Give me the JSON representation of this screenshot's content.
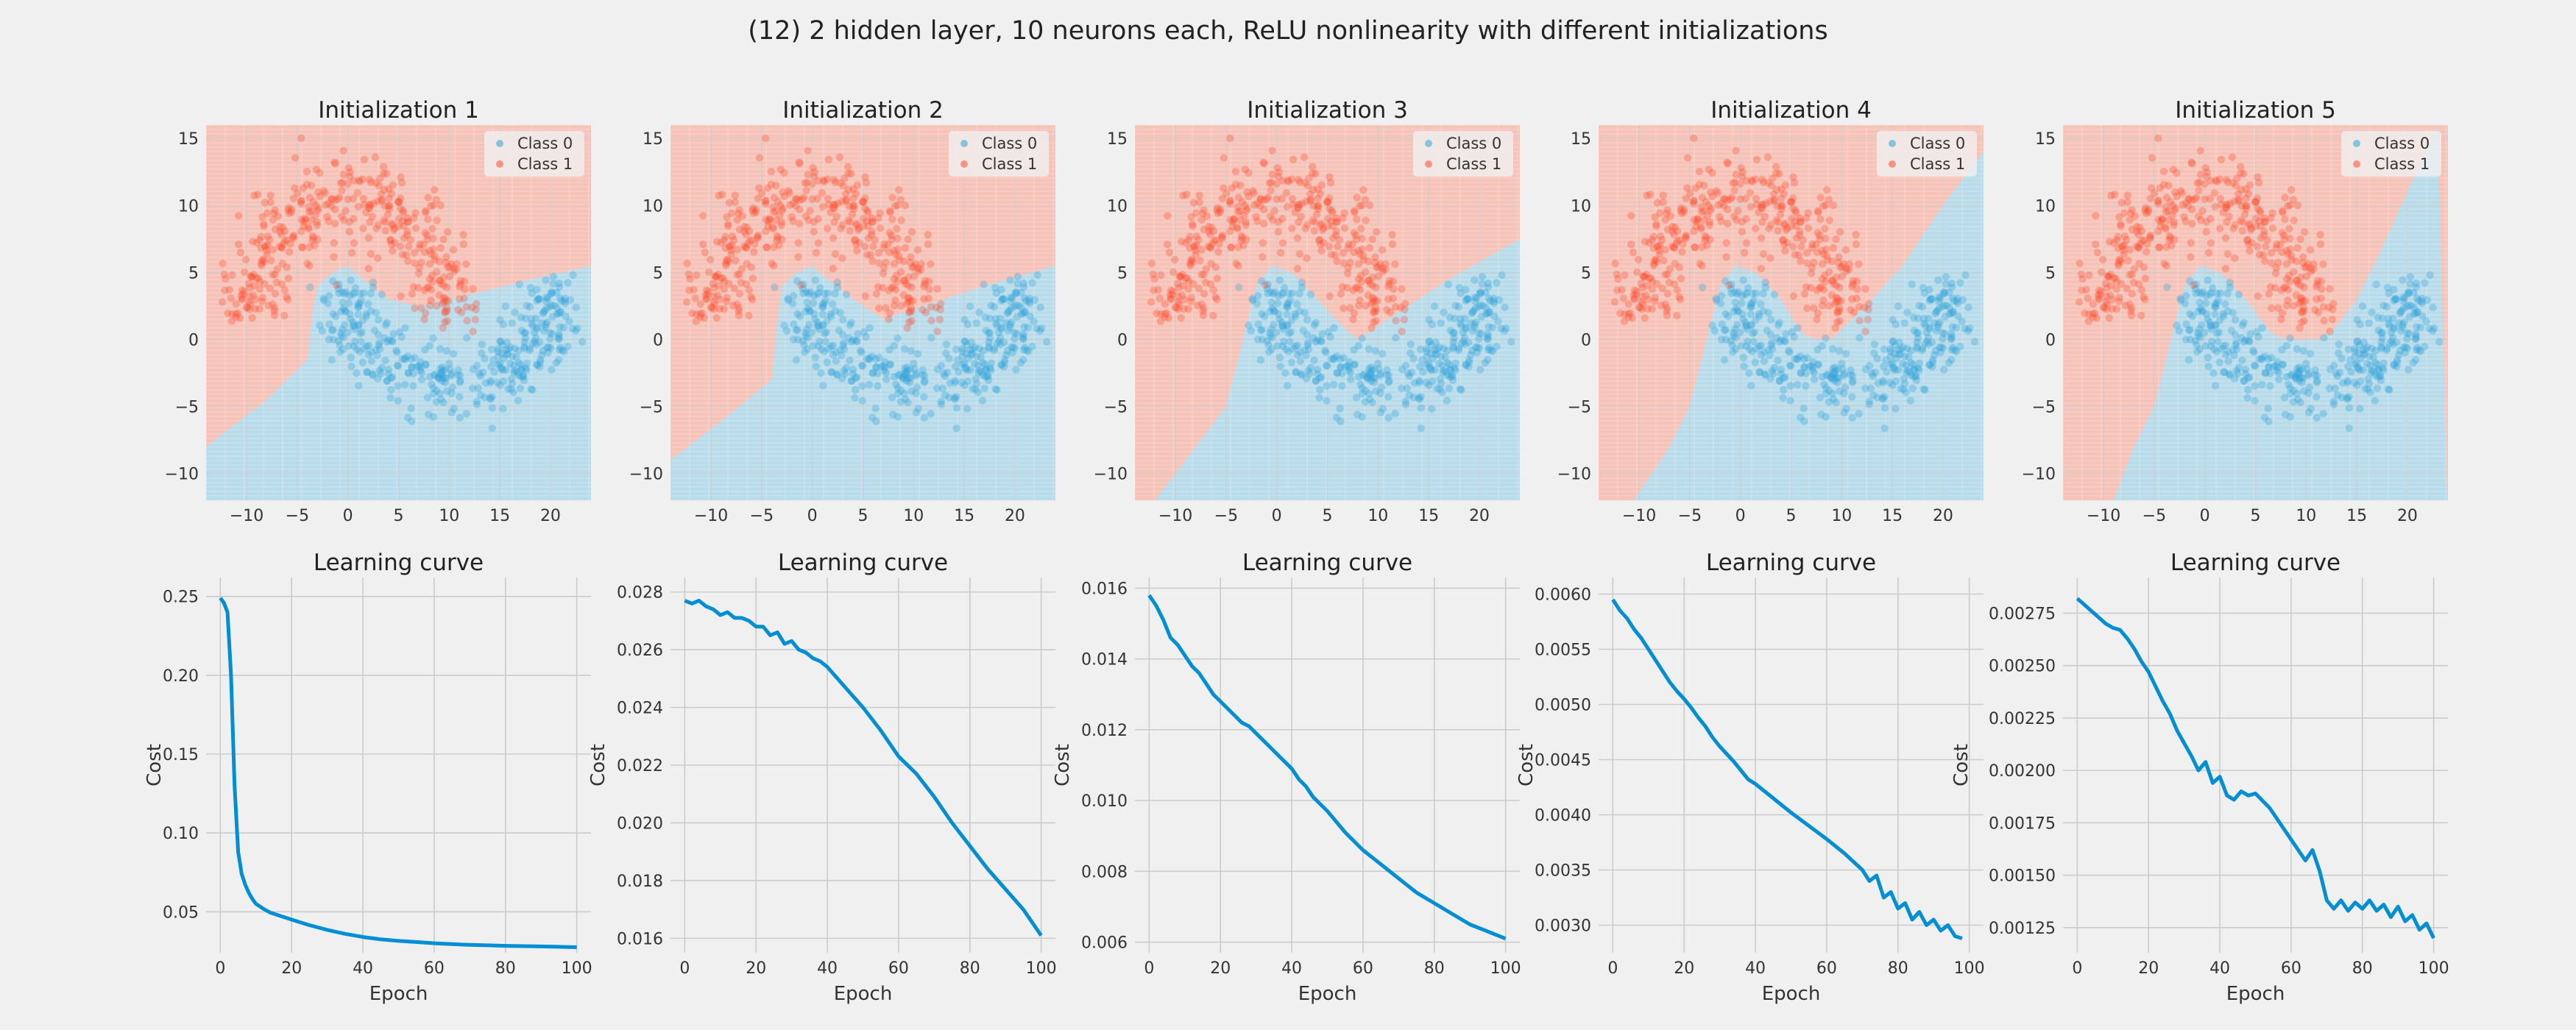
{
  "figure": {
    "suptitle": "(12) 2 hidden layer, 10 neurons each, ReLU nonlinearity with different initializations"
  },
  "colors": {
    "background": "#f0f0f0",
    "class0": "#30a2da",
    "class1": "#fc4f30",
    "region0": "#b9dcea",
    "region1": "#f6c3b8",
    "curve": "#008fd5"
  },
  "chart_data": [
    {
      "type": "scatter",
      "title": "Initialization 1",
      "xlim": [
        -14,
        24
      ],
      "ylim": [
        -12,
        16
      ],
      "xticks": [
        -10,
        -5,
        0,
        5,
        10,
        15,
        20
      ],
      "xtick_labels": [
        "−10",
        "−5",
        "0",
        "5",
        "10",
        "15",
        "20"
      ],
      "yticks": [
        -10,
        -5,
        0,
        5,
        10,
        15
      ],
      "ytick_labels": [
        "−10",
        "−5",
        "0",
        "5",
        "10",
        "15"
      ],
      "legend": [
        "Class 0",
        "Class 1"
      ],
      "legend_position": "top-right",
      "decision_boundary": [
        [
          -14,
          -8
        ],
        [
          -8,
          -4.5
        ],
        [
          -4,
          -1.5
        ],
        [
          -3.5,
          2
        ],
        [
          -3,
          4
        ],
        [
          -1.5,
          5
        ],
        [
          0,
          5.5
        ],
        [
          1.5,
          4.5
        ],
        [
          4,
          3
        ],
        [
          7,
          2.5
        ],
        [
          10,
          3
        ],
        [
          13,
          3.5
        ],
        [
          17,
          4.3
        ],
        [
          24,
          5.5
        ]
      ],
      "series": [
        {
          "name": "Class 0"
        },
        {
          "name": "Class 1"
        }
      ]
    },
    {
      "type": "scatter",
      "title": "Initialization 2",
      "xlim": [
        -14,
        24
      ],
      "ylim": [
        -12,
        16
      ],
      "xticks": [
        -10,
        -5,
        0,
        5,
        10,
        15,
        20
      ],
      "xtick_labels": [
        "−10",
        "−5",
        "0",
        "5",
        "10",
        "15",
        "20"
      ],
      "yticks": [
        -10,
        -5,
        0,
        5,
        10,
        15
      ],
      "ytick_labels": [
        "−10",
        "−5",
        "0",
        "5",
        "10",
        "15"
      ],
      "legend": [
        "Class 0",
        "Class 1"
      ],
      "legend_position": "top-right",
      "decision_boundary": [
        [
          -14,
          -9
        ],
        [
          -8,
          -5.5
        ],
        [
          -4,
          -3
        ],
        [
          -3.5,
          1
        ],
        [
          -3,
          4
        ],
        [
          -1.5,
          5
        ],
        [
          0,
          5.5
        ],
        [
          1.5,
          4.5
        ],
        [
          4,
          3
        ],
        [
          7,
          1.5
        ],
        [
          10,
          2.3
        ],
        [
          13,
          3
        ],
        [
          17,
          4
        ],
        [
          24,
          5.5
        ]
      ],
      "series": [
        {
          "name": "Class 0"
        },
        {
          "name": "Class 1"
        }
      ]
    },
    {
      "type": "scatter",
      "title": "Initialization 3",
      "xlim": [
        -14,
        24
      ],
      "ylim": [
        -12,
        16
      ],
      "xticks": [
        -10,
        -5,
        0,
        5,
        10,
        15,
        20
      ],
      "xtick_labels": [
        "−10",
        "−5",
        "0",
        "5",
        "10",
        "15",
        "20"
      ],
      "yticks": [
        -10,
        -5,
        0,
        5,
        10,
        15
      ],
      "ytick_labels": [
        "−10",
        "−5",
        "0",
        "5",
        "10",
        "15"
      ],
      "legend": [
        "Class 0",
        "Class 1"
      ],
      "legend_position": "top-right",
      "decision_boundary": [
        [
          -12,
          -12
        ],
        [
          -8,
          -8
        ],
        [
          -5,
          -5
        ],
        [
          -4,
          -2
        ],
        [
          -3,
          1
        ],
        [
          -2,
          4
        ],
        [
          -0.5,
          5.5
        ],
        [
          1.5,
          5
        ],
        [
          4,
          3
        ],
        [
          6.5,
          1
        ],
        [
          8,
          0
        ],
        [
          10,
          1
        ],
        [
          13,
          2.5
        ],
        [
          17,
          4.5
        ],
        [
          24,
          7.5
        ]
      ],
      "series": [
        {
          "name": "Class 0"
        },
        {
          "name": "Class 1"
        }
      ]
    },
    {
      "type": "scatter",
      "title": "Initialization 4",
      "xlim": [
        -14,
        24
      ],
      "ylim": [
        -12,
        16
      ],
      "xticks": [
        -10,
        -5,
        0,
        5,
        10,
        15,
        20
      ],
      "xtick_labels": [
        "−10",
        "−5",
        "0",
        "5",
        "10",
        "15",
        "20"
      ],
      "yticks": [
        -10,
        -5,
        0,
        5,
        10,
        15
      ],
      "ytick_labels": [
        "−10",
        "−5",
        "0",
        "5",
        "10",
        "15"
      ],
      "legend": [
        "Class 0",
        "Class 1"
      ],
      "legend_position": "top-right",
      "decision_boundary": [
        [
          -10.5,
          -12
        ],
        [
          -7,
          -8
        ],
        [
          -5,
          -5
        ],
        [
          -4,
          -2
        ],
        [
          -3,
          1
        ],
        [
          -2,
          4
        ],
        [
          -0.5,
          5.5
        ],
        [
          1.5,
          5
        ],
        [
          4,
          3
        ],
        [
          6,
          0.5
        ],
        [
          7.5,
          0
        ],
        [
          9,
          0
        ],
        [
          11,
          1.5
        ],
        [
          13,
          3
        ],
        [
          16,
          5.5
        ],
        [
          20,
          10
        ],
        [
          24,
          14
        ]
      ],
      "series": [
        {
          "name": "Class 0"
        },
        {
          "name": "Class 1"
        }
      ]
    },
    {
      "type": "scatter",
      "title": "Initialization 5",
      "xlim": [
        -14,
        24
      ],
      "ylim": [
        -12,
        16
      ],
      "xticks": [
        -10,
        -5,
        0,
        5,
        10,
        15,
        20
      ],
      "xtick_labels": [
        "−10",
        "−5",
        "0",
        "5",
        "10",
        "15",
        "20"
      ],
      "yticks": [
        -10,
        -5,
        0,
        5,
        10,
        15
      ],
      "ytick_labels": [
        "−10",
        "−5",
        "0",
        "5",
        "10",
        "15"
      ],
      "legend": [
        "Class 0",
        "Class 1"
      ],
      "legend_position": "top-right",
      "decision_boundary": [
        [
          -9,
          -12
        ],
        [
          -7,
          -8
        ],
        [
          -5,
          -5
        ],
        [
          -4,
          -2
        ],
        [
          -3,
          1
        ],
        [
          -2,
          4
        ],
        [
          -0.5,
          5.5
        ],
        [
          1.5,
          5
        ],
        [
          4,
          3
        ],
        [
          6.5,
          0.5
        ],
        [
          8,
          0
        ],
        [
          11.5,
          0
        ],
        [
          13,
          1
        ],
        [
          15,
          3
        ],
        [
          17,
          6
        ],
        [
          20,
          11
        ],
        [
          23,
          16
        ]
      ],
      "series": [
        {
          "name": "Class 0"
        },
        {
          "name": "Class 1"
        }
      ]
    },
    {
      "type": "line",
      "title": "Learning curve",
      "xlabel": "Epoch",
      "ylabel": "Cost",
      "xlim": [
        -4,
        104
      ],
      "ylim": [
        0.024,
        0.262
      ],
      "xticks": [
        0,
        20,
        40,
        60,
        80,
        100
      ],
      "xtick_labels": [
        "0",
        "20",
        "40",
        "60",
        "80",
        "100"
      ],
      "yticks": [
        0.05,
        0.1,
        0.15,
        0.2,
        0.25
      ],
      "ytick_labels": [
        "0.05",
        "0.10",
        "0.15",
        "0.20",
        "0.25"
      ],
      "x": [
        0,
        1,
        2,
        3,
        4,
        5,
        6,
        7,
        8,
        9,
        10,
        12,
        14,
        16,
        18,
        20,
        25,
        30,
        35,
        40,
        45,
        50,
        55,
        60,
        65,
        70,
        75,
        80,
        85,
        90,
        95,
        100
      ],
      "y": [
        0.249,
        0.246,
        0.24,
        0.2,
        0.13,
        0.088,
        0.074,
        0.067,
        0.062,
        0.058,
        0.055,
        0.052,
        0.0495,
        0.048,
        0.0465,
        0.045,
        0.0415,
        0.0385,
        0.036,
        0.034,
        0.0325,
        0.0315,
        0.0308,
        0.03,
        0.0295,
        0.029,
        0.0287,
        0.0284,
        0.0282,
        0.028,
        0.0278,
        0.0275
      ]
    },
    {
      "type": "line",
      "title": "Learning curve",
      "xlabel": "Epoch",
      "ylabel": "Cost",
      "xlim": [
        -4,
        104
      ],
      "ylim": [
        0.0155,
        0.0285
      ],
      "xticks": [
        0,
        20,
        40,
        60,
        80,
        100
      ],
      "xtick_labels": [
        "0",
        "20",
        "40",
        "60",
        "80",
        "100"
      ],
      "yticks": [
        0.016,
        0.018,
        0.02,
        0.022,
        0.024,
        0.026,
        0.028
      ],
      "ytick_labels": [
        "0.016",
        "0.018",
        "0.020",
        "0.022",
        "0.024",
        "0.026",
        "0.028"
      ],
      "x": [
        0,
        2,
        4,
        6,
        8,
        10,
        12,
        14,
        16,
        18,
        20,
        22,
        24,
        26,
        28,
        30,
        32,
        34,
        36,
        38,
        40,
        45,
        50,
        55,
        60,
        65,
        70,
        75,
        80,
        85,
        90,
        95,
        100
      ],
      "y": [
        0.0277,
        0.0276,
        0.0277,
        0.0275,
        0.0274,
        0.0272,
        0.0273,
        0.0271,
        0.0271,
        0.027,
        0.0268,
        0.0268,
        0.0265,
        0.0266,
        0.0262,
        0.0263,
        0.026,
        0.0259,
        0.0257,
        0.0256,
        0.0254,
        0.0247,
        0.024,
        0.0232,
        0.0223,
        0.0217,
        0.0209,
        0.02,
        0.0192,
        0.0184,
        0.0177,
        0.017,
        0.0161
      ]
    },
    {
      "type": "line",
      "title": "Learning curve",
      "xlabel": "Epoch",
      "ylabel": "Cost",
      "xlim": [
        -4,
        104
      ],
      "ylim": [
        0.0057,
        0.0163
      ],
      "xticks": [
        0,
        20,
        40,
        60,
        80,
        100
      ],
      "xtick_labels": [
        "0",
        "20",
        "40",
        "60",
        "80",
        "100"
      ],
      "yticks": [
        0.006,
        0.008,
        0.01,
        0.012,
        0.014,
        0.016
      ],
      "ytick_labels": [
        "0.006",
        "0.008",
        "0.010",
        "0.012",
        "0.014",
        "0.016"
      ],
      "x": [
        0,
        2,
        4,
        6,
        8,
        10,
        12,
        14,
        16,
        18,
        20,
        22,
        24,
        26,
        28,
        30,
        32,
        34,
        36,
        38,
        40,
        42,
        44,
        46,
        48,
        50,
        55,
        60,
        65,
        70,
        75,
        80,
        85,
        90,
        95,
        100
      ],
      "y": [
        0.0158,
        0.0155,
        0.0151,
        0.0146,
        0.0144,
        0.0141,
        0.0138,
        0.0136,
        0.0133,
        0.013,
        0.0128,
        0.0126,
        0.0124,
        0.0122,
        0.0121,
        0.0119,
        0.0117,
        0.0115,
        0.0113,
        0.0111,
        0.0109,
        0.0106,
        0.0104,
        0.0101,
        0.0099,
        0.0097,
        0.0091,
        0.0086,
        0.0082,
        0.0078,
        0.0074,
        0.0071,
        0.0068,
        0.0065,
        0.0063,
        0.0061
      ]
    },
    {
      "type": "line",
      "title": "Learning curve",
      "xlabel": "Epoch",
      "ylabel": "Cost",
      "xlim": [
        -4,
        104
      ],
      "ylim": [
        0.00275,
        0.00615
      ],
      "xticks": [
        0,
        20,
        40,
        60,
        80,
        100
      ],
      "xtick_labels": [
        "0",
        "20",
        "40",
        "60",
        "80",
        "100"
      ],
      "yticks": [
        0.003,
        0.0035,
        0.004,
        0.0045,
        0.005,
        0.0055,
        0.006
      ],
      "ytick_labels": [
        "0.0030",
        "0.0035",
        "0.0040",
        "0.0045",
        "0.0050",
        "0.0055",
        "0.0060"
      ],
      "x": [
        0,
        2,
        4,
        6,
        8,
        10,
        12,
        14,
        16,
        18,
        20,
        22,
        24,
        26,
        28,
        30,
        32,
        34,
        36,
        38,
        40,
        45,
        50,
        55,
        60,
        65,
        70,
        72,
        74,
        76,
        78,
        80,
        82,
        84,
        86,
        88,
        90,
        92,
        94,
        96,
        98
      ],
      "y": [
        0.00595,
        0.00585,
        0.00578,
        0.00568,
        0.0056,
        0.0055,
        0.0054,
        0.0053,
        0.0052,
        0.00512,
        0.00505,
        0.00497,
        0.00488,
        0.0048,
        0.0047,
        0.00462,
        0.00455,
        0.00448,
        0.0044,
        0.00432,
        0.00428,
        0.00415,
        0.00402,
        0.0039,
        0.00378,
        0.00365,
        0.0035,
        0.0034,
        0.00345,
        0.00325,
        0.0033,
        0.00315,
        0.0032,
        0.00305,
        0.00312,
        0.003,
        0.00305,
        0.00295,
        0.003,
        0.0029,
        0.00288
      ]
    },
    {
      "type": "line",
      "title": "Learning curve",
      "xlabel": "Epoch",
      "ylabel": "Cost",
      "xlim": [
        -4,
        104
      ],
      "ylim": [
        0.00113,
        0.00292
      ],
      "xticks": [
        0,
        20,
        40,
        60,
        80,
        100
      ],
      "xtick_labels": [
        "0",
        "20",
        "40",
        "60",
        "80",
        "100"
      ],
      "yticks": [
        0.00125,
        0.0015,
        0.00175,
        0.002,
        0.00225,
        0.0025,
        0.00275
      ],
      "ytick_labels": [
        "0.00125",
        "0.00150",
        "0.00175",
        "0.00200",
        "0.00225",
        "0.00250",
        "0.00275"
      ],
      "x": [
        0,
        2,
        4,
        6,
        8,
        10,
        12,
        14,
        16,
        18,
        20,
        22,
        24,
        26,
        28,
        30,
        32,
        34,
        36,
        38,
        40,
        42,
        44,
        46,
        48,
        50,
        54,
        58,
        62,
        64,
        66,
        68,
        70,
        72,
        74,
        76,
        78,
        80,
        82,
        84,
        86,
        88,
        90,
        92,
        94,
        96,
        98,
        100
      ],
      "y": [
        0.00282,
        0.00279,
        0.00276,
        0.00273,
        0.0027,
        0.00268,
        0.00267,
        0.00263,
        0.00258,
        0.00252,
        0.00247,
        0.0024,
        0.00233,
        0.00227,
        0.00219,
        0.00213,
        0.00207,
        0.002,
        0.00204,
        0.00194,
        0.00197,
        0.00188,
        0.00186,
        0.0019,
        0.00188,
        0.00189,
        0.00182,
        0.00172,
        0.00162,
        0.00157,
        0.00162,
        0.00152,
        0.00138,
        0.00134,
        0.00138,
        0.00133,
        0.00137,
        0.00134,
        0.00138,
        0.00133,
        0.00136,
        0.0013,
        0.00135,
        0.00128,
        0.00131,
        0.00124,
        0.00127,
        0.0012
      ]
    }
  ]
}
